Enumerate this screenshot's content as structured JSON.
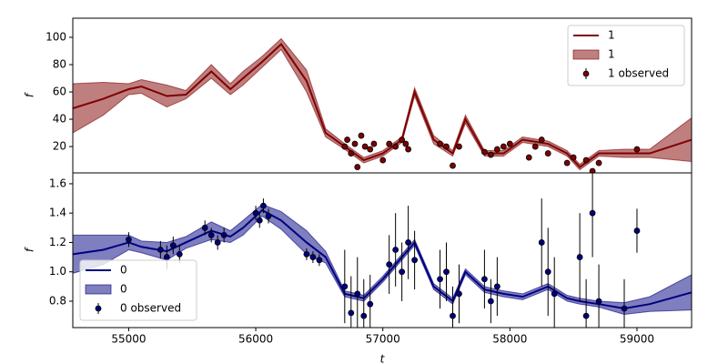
{
  "chart_data": [
    {
      "type": "line",
      "ylabel": "f",
      "xlim": [
        54560,
        59430
      ],
      "ylim": [
        0.7,
        114
      ],
      "yticks": [
        20,
        40,
        60,
        80,
        100
      ],
      "legend": "upper right",
      "x": [
        54560,
        54800,
        55000,
        55100,
        55300,
        55450,
        55650,
        55800,
        55900,
        56050,
        56200,
        56400,
        56550,
        56700,
        56850,
        57000,
        57150,
        57250,
        57400,
        57550,
        57650,
        57800,
        57950,
        58100,
        58300,
        58450,
        58550,
        58700,
        58900,
        59100,
        59430
      ],
      "series": [
        {
          "name": "1",
          "color": "#7f0000",
          "values": [
            48,
            55,
            62,
            64,
            57,
            58,
            75,
            62,
            70,
            82,
            95,
            68,
            30,
            20,
            10,
            15,
            25,
            60,
            25,
            15,
            40,
            15,
            15,
            25,
            22,
            15,
            5,
            15,
            15,
            15,
            25
          ]
        },
        {
          "name": "1",
          "color": "#7f0000",
          "lower": [
            30,
            43,
            58,
            59,
            49,
            55,
            70,
            58,
            65,
            78,
            91,
            60,
            27,
            18,
            8,
            13,
            23,
            57,
            22,
            13,
            37,
            13,
            13,
            23,
            20,
            13,
            3,
            13,
            12,
            12,
            9
          ],
          "upper": [
            66,
            67,
            66,
            69,
            65,
            61,
            80,
            66,
            75,
            86,
            99,
            76,
            33,
            22,
            12,
            17,
            27,
            63,
            28,
            17,
            43,
            17,
            17,
            27,
            24,
            17,
            7,
            17,
            18,
            18,
            41
          ]
        }
      ],
      "observed": {
        "name": "1 observed",
        "color": "#7f0000",
        "x": [
          56700,
          56720,
          56750,
          56780,
          56800,
          56830,
          56860,
          56900,
          56930,
          57000,
          57050,
          57100,
          57150,
          57180,
          57200,
          57450,
          57500,
          57550,
          57600,
          57800,
          57850,
          57900,
          57950,
          58000,
          58150,
          58200,
          58250,
          58300,
          58450,
          58500,
          58600,
          58650,
          58700,
          59000
        ],
        "values": [
          20,
          25,
          15,
          22,
          5,
          28,
          20,
          18,
          22,
          10,
          22,
          20,
          25,
          22,
          18,
          22,
          20,
          6,
          20,
          16,
          14,
          18,
          20,
          22,
          12,
          20,
          25,
          15,
          8,
          12,
          10,
          2,
          8,
          18
        ],
        "errors": [
          2,
          2,
          2,
          2,
          2,
          2,
          2,
          2,
          2,
          2,
          2,
          2,
          2,
          2,
          2,
          2,
          2,
          2,
          2,
          2,
          2,
          2,
          2,
          2,
          2,
          2,
          2,
          2,
          2,
          2,
          2,
          2,
          2,
          2
        ]
      }
    },
    {
      "type": "line",
      "ylabel": "f",
      "xlabel": "t",
      "xlim": [
        54560,
        59430
      ],
      "ylim": [
        0.62,
        1.674
      ],
      "legend": "lower left",
      "xticks": [
        55000,
        56000,
        57000,
        58000,
        59000
      ],
      "yticks": [
        0.8,
        {
          "value": 1,
          "label": "1.0"
        },
        1.2,
        1.4,
        1.6
      ],
      "x": [
        54560,
        54800,
        55000,
        55100,
        55300,
        55450,
        55650,
        55800,
        55900,
        56050,
        56200,
        56400,
        56550,
        56700,
        56850,
        57000,
        57150,
        57250,
        57400,
        57550,
        57650,
        57800,
        57950,
        58100,
        58300,
        58450,
        58550,
        58700,
        58900,
        59100,
        59430
      ],
      "series": [
        {
          "name": "0",
          "color": "#000080",
          "values": [
            1.12,
            1.15,
            1.2,
            1.17,
            1.14,
            1.2,
            1.28,
            1.24,
            1.3,
            1.42,
            1.35,
            1.2,
            1.1,
            0.85,
            0.82,
            0.95,
            1.1,
            1.2,
            0.9,
            0.8,
            1.0,
            0.88,
            0.85,
            0.83,
            0.9,
            0.82,
            0.8,
            0.78,
            0.75,
            0.78,
            0.86
          ]
        },
        {
          "name": "0",
          "color": "#000080",
          "lower": [
            0.99,
            1.05,
            1.15,
            1.13,
            1.08,
            1.16,
            1.22,
            1.2,
            1.25,
            1.38,
            1.29,
            1.12,
            1.06,
            0.83,
            0.8,
            0.93,
            1.08,
            1.18,
            0.88,
            0.78,
            0.98,
            0.86,
            0.83,
            0.81,
            0.88,
            0.8,
            0.78,
            0.76,
            0.71,
            0.73,
            0.74
          ],
          "upper": [
            1.25,
            1.25,
            1.25,
            1.21,
            1.2,
            1.24,
            1.34,
            1.28,
            1.35,
            1.46,
            1.41,
            1.28,
            1.14,
            0.87,
            0.84,
            0.97,
            1.12,
            1.22,
            0.92,
            0.82,
            1.02,
            0.9,
            0.87,
            0.85,
            0.92,
            0.84,
            0.82,
            0.8,
            0.79,
            0.83,
            0.98
          ]
        }
      ],
      "observed": {
        "name": "0 observed",
        "color": "#000080",
        "x": [
          55000,
          55250,
          55300,
          55350,
          55400,
          55600,
          55650,
          55700,
          55750,
          56000,
          56030,
          56060,
          56100,
          56400,
          56450,
          56500,
          56700,
          56750,
          56800,
          56850,
          56900,
          57050,
          57100,
          57150,
          57200,
          57250,
          57450,
          57500,
          57550,
          57600,
          57800,
          57850,
          57900,
          58250,
          58300,
          58350,
          58550,
          58600,
          58650,
          58700,
          58900,
          59000
        ],
        "values": [
          1.22,
          1.15,
          1.1,
          1.18,
          1.12,
          1.3,
          1.25,
          1.2,
          1.25,
          1.4,
          1.35,
          1.45,
          1.38,
          1.12,
          1.1,
          1.08,
          0.9,
          0.72,
          0.85,
          0.7,
          0.78,
          1.05,
          1.15,
          1.0,
          1.2,
          1.08,
          0.95,
          1.0,
          0.7,
          0.85,
          0.95,
          0.8,
          0.9,
          1.2,
          1.0,
          0.85,
          1.1,
          0.7,
          1.4,
          0.8,
          0.75,
          1.28
        ],
        "errors": [
          0.05,
          0.06,
          0.08,
          0.06,
          0.06,
          0.05,
          0.05,
          0.05,
          0.05,
          0.05,
          0.05,
          0.05,
          0.05,
          0.04,
          0.04,
          0.04,
          0.25,
          0.25,
          0.25,
          0.25,
          0.2,
          0.2,
          0.25,
          0.2,
          0.25,
          0.2,
          0.2,
          0.2,
          0.2,
          0.2,
          0.2,
          0.15,
          0.2,
          0.3,
          0.3,
          0.25,
          0.3,
          0.25,
          0.3,
          0.25,
          0.2,
          0.15
        ]
      }
    }
  ]
}
